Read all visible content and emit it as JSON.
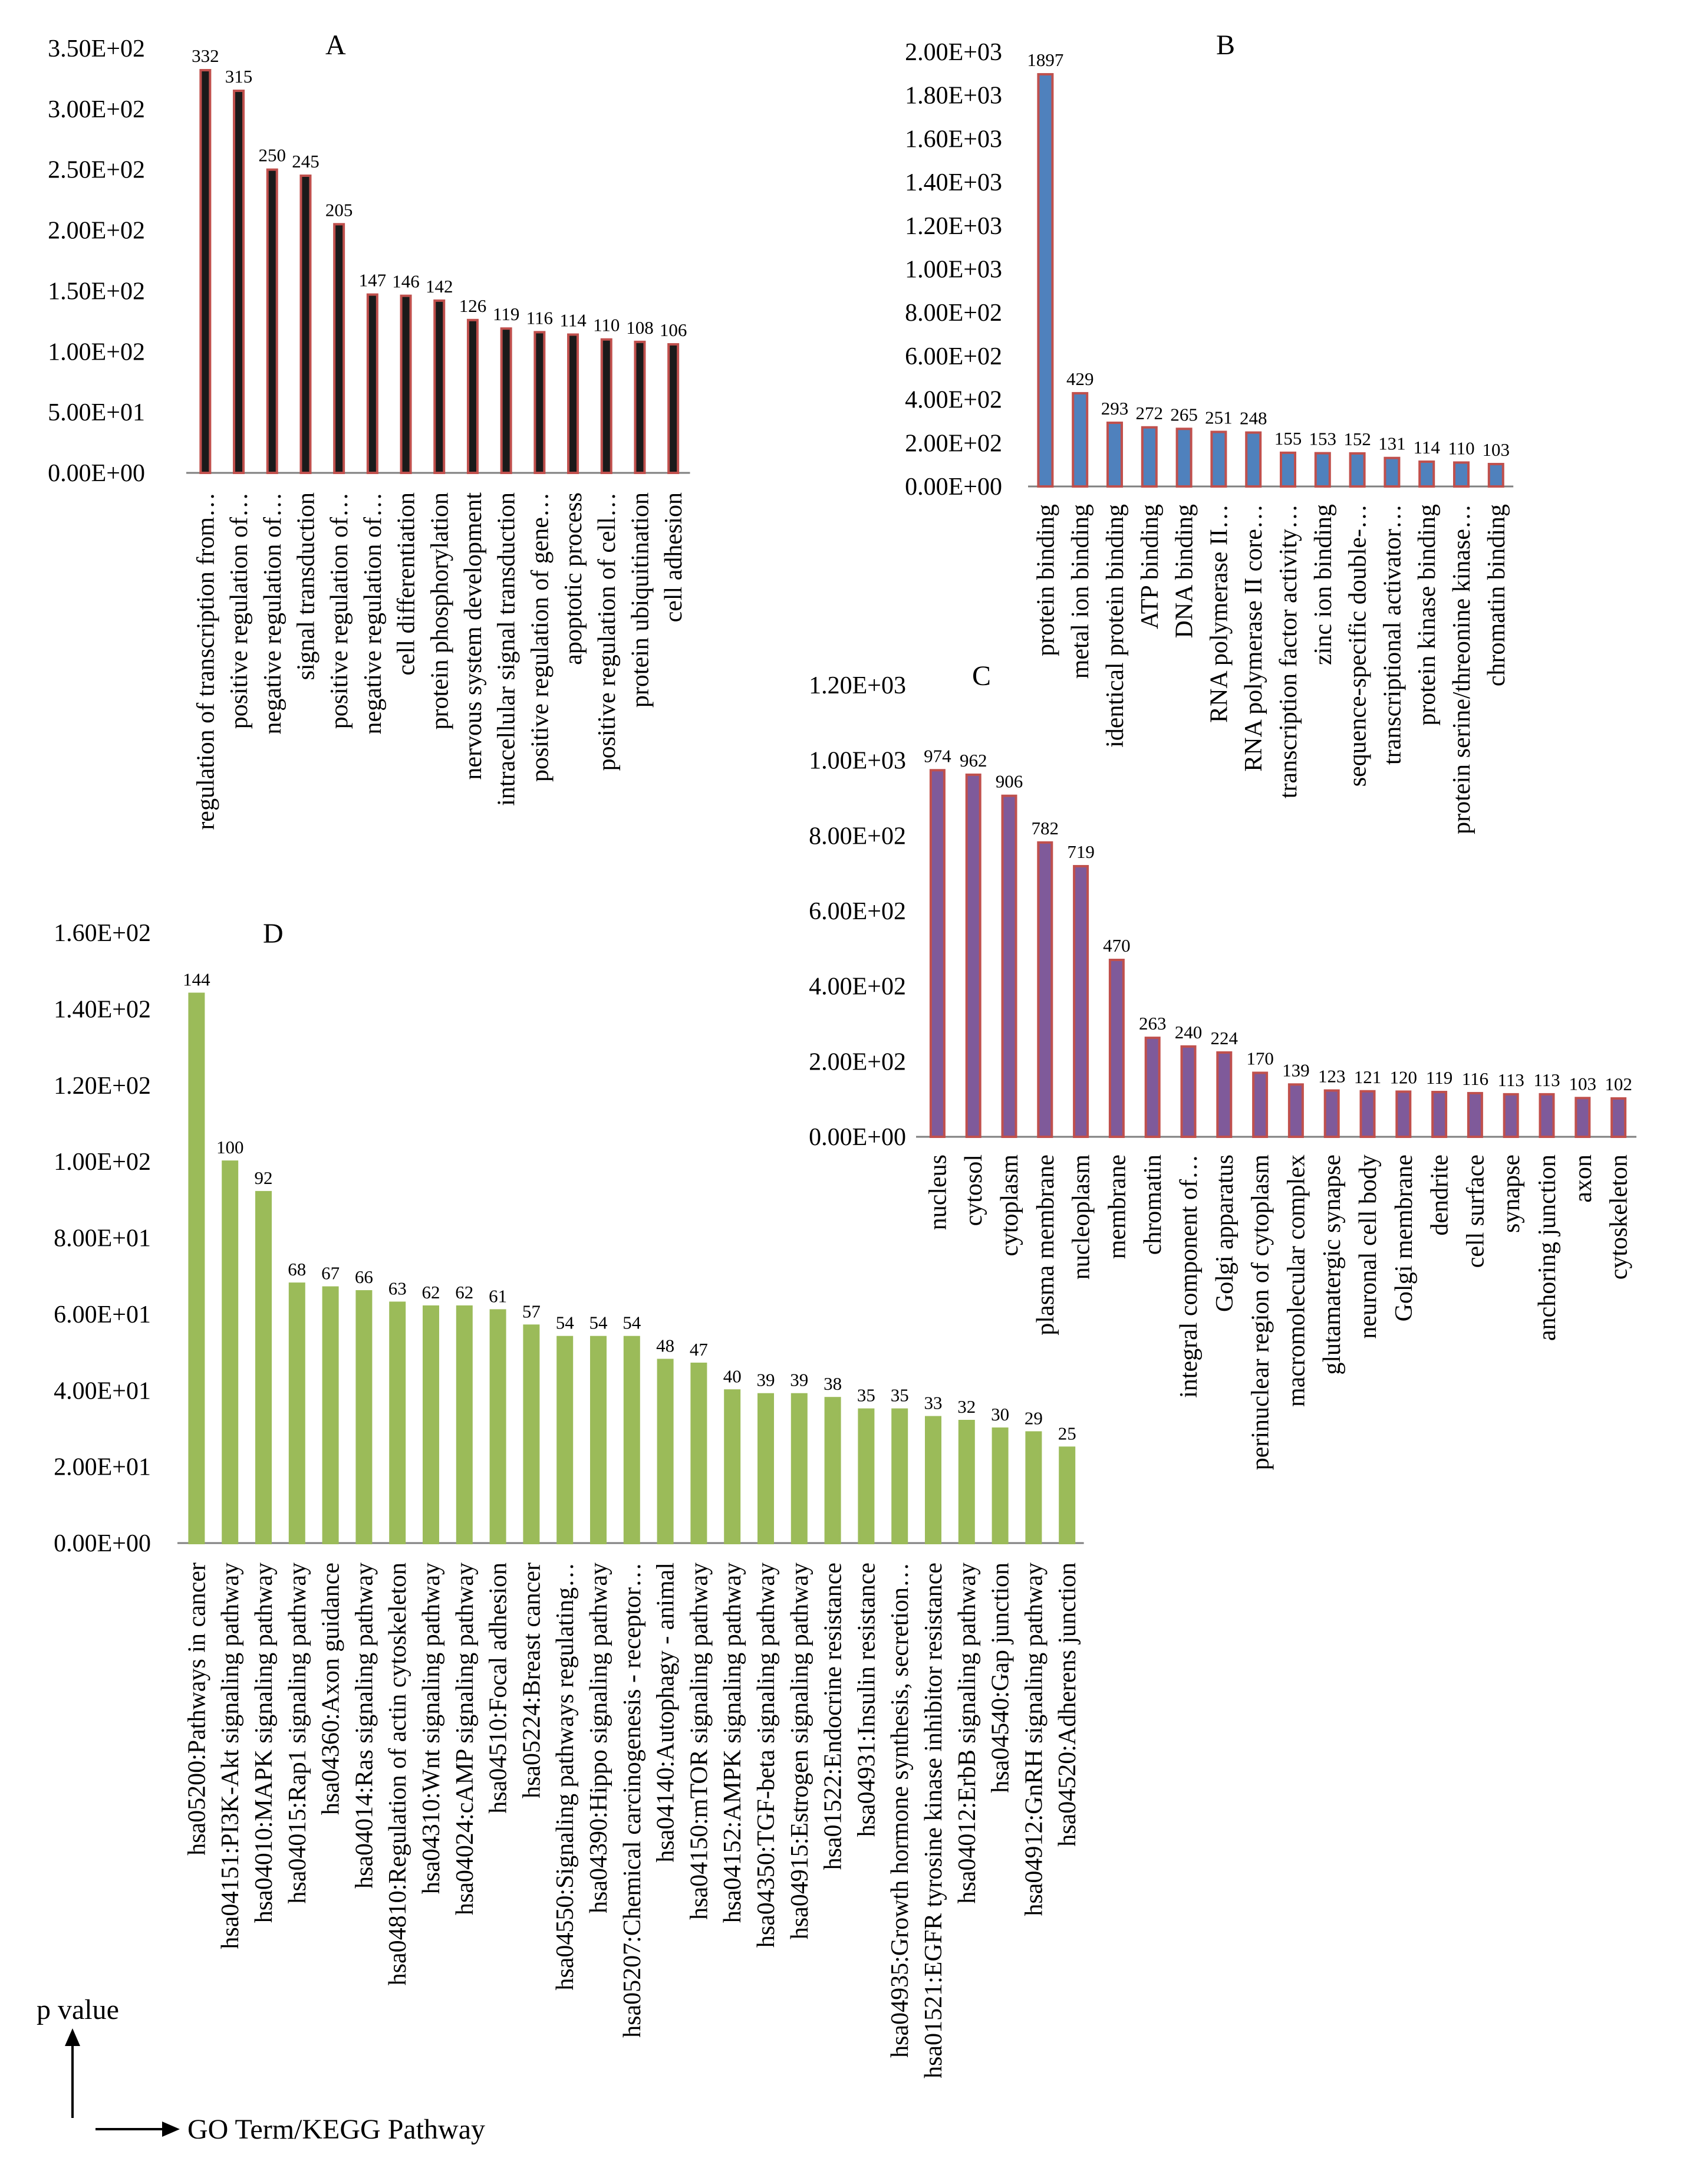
{
  "chart_data": [
    {
      "id": "A",
      "type": "bar",
      "panel_label": "A",
      "ylim": [
        0,
        350
      ],
      "ytick_values": [
        0,
        50,
        100,
        150,
        200,
        250,
        300,
        350
      ],
      "ytick_labels": [
        "0.00E+00",
        "5.00E+01",
        "1.00E+02",
        "1.50E+02",
        "2.00E+02",
        "2.50E+02",
        "3.00E+02",
        "3.50E+02"
      ],
      "categories": [
        "regulation of transcription from…",
        "positive regulation of…",
        "negative regulation of…",
        "signal transduction",
        "positive regulation of…",
        "negative regulation of…",
        "cell differentiation",
        "protein phosphorylation",
        "nervous system development",
        "intracellular signal transduction",
        "positive regulation of gene…",
        "apoptotic process",
        "positive regulation of cell…",
        "protein ubiquitination",
        "cell adhesion"
      ],
      "values": [
        332,
        315,
        250,
        245,
        205,
        147,
        146,
        142,
        126,
        119,
        116,
        114,
        110,
        108,
        106
      ],
      "colors": {
        "fill": "#1a1a1a",
        "edge": "#c0504d"
      }
    },
    {
      "id": "B",
      "type": "bar",
      "panel_label": "B",
      "ylim": [
        0,
        2000
      ],
      "ytick_values": [
        0,
        200,
        400,
        600,
        800,
        1000,
        1200,
        1400,
        1600,
        1800,
        2000
      ],
      "ytick_labels": [
        "0.00E+00",
        "2.00E+02",
        "4.00E+02",
        "6.00E+02",
        "8.00E+02",
        "1.00E+03",
        "1.20E+03",
        "1.40E+03",
        "1.60E+03",
        "1.80E+03",
        "2.00E+03"
      ],
      "categories": [
        "protein binding",
        "metal ion binding",
        "identical protein binding",
        "ATP binding",
        "DNA binding",
        "RNA polymerase II…",
        "RNA polymerase II core…",
        "transcription factor activity…",
        "zinc ion binding",
        "sequence-specific double-…",
        "transcriptional activator…",
        "protein kinase binding",
        "protein serine/threonine kinase…",
        "chromatin binding"
      ],
      "values": [
        1897,
        429,
        293,
        272,
        265,
        251,
        248,
        155,
        153,
        152,
        131,
        114,
        110,
        103
      ],
      "colors": {
        "fill": "#4f81bd",
        "edge": "#c0504d"
      }
    },
    {
      "id": "C",
      "type": "bar",
      "panel_label": "C",
      "ylim": [
        0,
        1200
      ],
      "ytick_values": [
        0,
        200,
        400,
        600,
        800,
        1000,
        1200
      ],
      "ytick_labels": [
        "0.00E+00",
        "2.00E+02",
        "4.00E+02",
        "6.00E+02",
        "8.00E+02",
        "1.00E+03",
        "1.20E+03"
      ],
      "categories": [
        "nucleus",
        "cytosol",
        "cytoplasm",
        "plasma membrane",
        "nucleoplasm",
        "membrane",
        "chromatin",
        "integral component of…",
        "Golgi apparatus",
        "perinuclear region of cytoplasm",
        "macromolecular complex",
        "glutamatergic synapse",
        "neuronal cell body",
        "Golgi membrane",
        "dendrite",
        "cell surface",
        "synapse",
        "anchoring junction",
        "axon",
        "cytoskeleton"
      ],
      "values": [
        974,
        962,
        906,
        782,
        719,
        470,
        263,
        240,
        224,
        170,
        139,
        123,
        121,
        120,
        119,
        116,
        113,
        113,
        103,
        102
      ],
      "colors": {
        "fill": "#7f5a9a",
        "edge": "#c0504d"
      }
    },
    {
      "id": "D",
      "type": "bar",
      "panel_label": "D",
      "ylim": [
        0,
        160
      ],
      "ytick_values": [
        0,
        20,
        40,
        60,
        80,
        100,
        120,
        140,
        160
      ],
      "ytick_labels": [
        "0.00E+00",
        "2.00E+01",
        "4.00E+01",
        "6.00E+01",
        "8.00E+01",
        "1.00E+02",
        "1.20E+02",
        "1.40E+02",
        "1.60E+02"
      ],
      "categories": [
        "hsa05200:Pathways in cancer",
        "hsa04151:PI3K-Akt signaling pathway",
        "hsa04010:MAPK signaling pathway",
        "hsa04015:Rap1 signaling pathway",
        "hsa04360:Axon guidance",
        "hsa04014:Ras signaling pathway",
        "hsa04810:Regulation of actin cytoskeleton",
        "hsa04310:Wnt signaling pathway",
        "hsa04024:cAMP signaling pathway",
        "hsa04510:Focal adhesion",
        "hsa05224:Breast cancer",
        "hsa04550:Signaling pathways regulating…",
        "hsa04390:Hippo signaling pathway",
        "hsa05207:Chemical carcinogenesis - receptor…",
        "hsa04140:Autophagy - animal",
        "hsa04150:mTOR signaling pathway",
        "hsa04152:AMPK signaling pathway",
        "hsa04350:TGF-beta signaling pathway",
        "hsa04915:Estrogen signaling pathway",
        "hsa01522:Endocrine resistance",
        "hsa04931:Insulin resistance",
        "hsa04935:Growth hormone synthesis, secretion…",
        "hsa01521:EGFR tyrosine kinase inhibitor resistance",
        "hsa04012:ErbB signaling pathway",
        "hsa04540:Gap junction",
        "hsa04912:GnRH signaling pathway",
        "hsa04520:Adherens junction"
      ],
      "values": [
        144,
        100,
        92,
        68,
        67,
        66,
        63,
        62,
        62,
        61,
        57,
        54,
        54,
        54,
        48,
        47,
        40,
        39,
        39,
        38,
        35,
        35,
        33,
        32,
        30,
        29,
        25
      ],
      "colors": {
        "fill": "#9bbb59",
        "edge": "#9bbb59"
      }
    }
  ],
  "legend": {
    "y_label": "p value",
    "x_label": "GO Term/KEGG Pathway",
    "up_arrow": "↑",
    "right_arrow": "⟶"
  }
}
